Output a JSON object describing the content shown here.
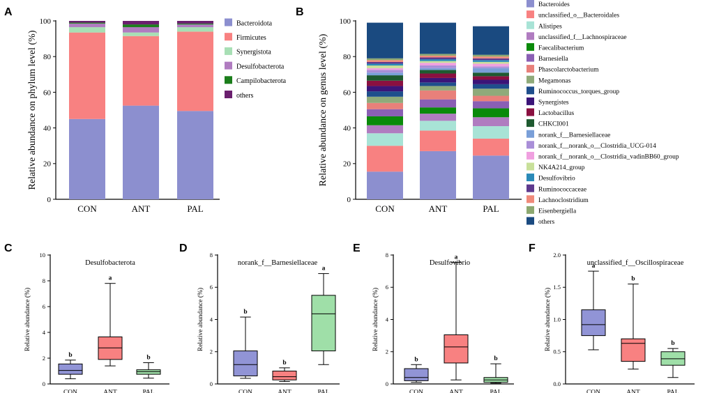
{
  "colors": {
    "Bacteroidota": "#8c8fcf",
    "Firmicutes": "#f88181",
    "Synergistota": "#a8dfb5",
    "Desulfobacterota": "#b07cc0",
    "Campilobacterota": "#1b7e1b",
    "others_phylum": "#6a1f6e",
    "box_CON": "#9194d6",
    "box_ANT": "#f88181",
    "box_PAL": "#9fdfa8"
  },
  "panel_letters": [
    "A",
    "B",
    "C",
    "D",
    "E",
    "F"
  ],
  "chart_data": [
    {
      "id": "A",
      "type": "bar",
      "stacked": true,
      "title": "",
      "ylabel": "Relative abundance on phylum level (%)",
      "xlabel": "",
      "ylim": [
        0,
        100
      ],
      "yticks": [
        0,
        20,
        40,
        60,
        80,
        100
      ],
      "categories": [
        "CON",
        "ANT",
        "PAL"
      ],
      "series": [
        {
          "name": "Bacteroidota",
          "color": "#8c8fcf",
          "values": [
            45,
            52.5,
            49.5
          ]
        },
        {
          "name": "Firmicutes",
          "color": "#f88181",
          "values": [
            48.5,
            39,
            44.5
          ]
        },
        {
          "name": "Synergistota",
          "color": "#a8dfb5",
          "values": [
            3,
            2,
            2.5
          ]
        },
        {
          "name": "Desulfobacterota",
          "color": "#b07cc0",
          "values": [
            2,
            3,
            1.5
          ]
        },
        {
          "name": "Campilobacterota",
          "color": "#1b7e1b",
          "values": [
            0.5,
            1.5,
            0.5
          ]
        },
        {
          "name": "others",
          "color": "#6a1f6e",
          "values": [
            1,
            2,
            1.5
          ]
        }
      ],
      "legend_position": "right"
    },
    {
      "id": "B",
      "type": "bar",
      "stacked": true,
      "title": "",
      "ylabel": "Relative abundance on genus level (%)",
      "xlabel": "",
      "ylim": [
        0,
        100
      ],
      "yticks": [
        0,
        20,
        40,
        60,
        80,
        100
      ],
      "categories": [
        "CON",
        "ANT",
        "PAL"
      ],
      "series": [
        {
          "name": "Bacteroides",
          "color": "#8c8fcf",
          "values": [
            15.5,
            27,
            24.5
          ]
        },
        {
          "name": "unclassified_o__Bacteroidales",
          "color": "#f88181",
          "values": [
            14.5,
            11.5,
            9.5
          ]
        },
        {
          "name": "Alistipes",
          "color": "#a8e3d6",
          "values": [
            7,
            5.5,
            7
          ]
        },
        {
          "name": "unclassified_f__Lachnospiraceae",
          "color": "#b07cc0",
          "values": [
            4.5,
            4,
            5
          ]
        },
        {
          "name": "Faecalibacterium",
          "color": "#0a8a0a",
          "values": [
            5,
            3.5,
            5
          ]
        },
        {
          "name": "Barnesiella",
          "color": "#8a5fb4",
          "values": [
            4,
            4.5,
            4
          ]
        },
        {
          "name": "Phascolarctobacterium",
          "color": "#e8807a",
          "values": [
            3.5,
            5,
            3
          ]
        },
        {
          "name": "Megamonas",
          "color": "#8faa7a",
          "values": [
            3.5,
            2.5,
            4
          ]
        },
        {
          "name": "Ruminococcus_torques_group",
          "color": "#1f4e8c",
          "values": [
            3,
            2,
            2.5
          ]
        },
        {
          "name": "Synergistes",
          "color": "#3b1478",
          "values": [
            3,
            2.5,
            2.5
          ]
        },
        {
          "name": "Lactobacillus",
          "color": "#8a1040",
          "values": [
            3,
            2.5,
            2
          ]
        },
        {
          "name": "CHKCI001",
          "color": "#1e5a30",
          "values": [
            3,
            2,
            2
          ]
        },
        {
          "name": "norank_f__Barnesiellaceae",
          "color": "#7a9fd8",
          "values": [
            1.5,
            1,
            2.5
          ]
        },
        {
          "name": "norank_f__norank_o__Clostridia_UCG-014",
          "color": "#a98fd8",
          "values": [
            1.5,
            1.5,
            1
          ]
        },
        {
          "name": "norank_f__norank_o__Clostridia_vadinBB60_group",
          "color": "#f0a0e0",
          "values": [
            1,
            1.5,
            1.5
          ]
        },
        {
          "name": "NK4A214_group",
          "color": "#c8e09a",
          "values": [
            1.5,
            1,
            1
          ]
        },
        {
          "name": "Desulfovibrio",
          "color": "#2a8ab8",
          "values": [
            1,
            1,
            1
          ]
        },
        {
          "name": "Ruminococcaceae",
          "color": "#5e3a8e",
          "values": [
            1,
            1,
            1
          ]
        },
        {
          "name": "Lachnoclostridium",
          "color": "#f08a7a",
          "values": [
            1,
            1,
            1
          ]
        },
        {
          "name": "Eisenbergiella",
          "color": "#8da870",
          "values": [
            1,
            1,
            1
          ]
        },
        {
          "name": "others",
          "color": "#1a4a80",
          "values": [
            20,
            17.5,
            16
          ]
        }
      ],
      "legend_position": "right"
    },
    {
      "id": "C",
      "type": "box",
      "title": "Desulfobacterota",
      "ylabel": "Relative abundance (%)",
      "xlabel": "",
      "ylim": [
        0,
        10
      ],
      "yticks": [
        0,
        2,
        4,
        6,
        8,
        10
      ],
      "categories": [
        "CON",
        "ANT",
        "PAL"
      ],
      "boxes": [
        {
          "min": 0.4,
          "q1": 0.75,
          "median": 1.05,
          "q3": 1.55,
          "max": 1.85,
          "letter": "b"
        },
        {
          "min": 1.4,
          "q1": 1.9,
          "median": 2.8,
          "q3": 3.65,
          "max": 7.8,
          "letter": "a"
        },
        {
          "min": 0.45,
          "q1": 0.75,
          "median": 0.95,
          "q3": 1.1,
          "max": 1.65,
          "letter": "b"
        }
      ]
    },
    {
      "id": "D",
      "type": "box",
      "title": "norank_f__Barnesiellaceae",
      "ylabel": "Relative abundance (%)",
      "xlabel": "",
      "ylim": [
        0,
        8
      ],
      "yticks": [
        0,
        2,
        4,
        6,
        8
      ],
      "categories": [
        "CON",
        "ANT",
        "PAL"
      ],
      "boxes": [
        {
          "min": 0.35,
          "q1": 0.5,
          "median": 1.2,
          "q3": 2.05,
          "max": 4.15,
          "letter": "b"
        },
        {
          "min": 0.15,
          "q1": 0.25,
          "median": 0.45,
          "q3": 0.8,
          "max": 1.0,
          "letter": "b"
        },
        {
          "min": 1.2,
          "q1": 2.05,
          "median": 4.35,
          "q3": 5.5,
          "max": 6.85,
          "letter": "a"
        }
      ]
    },
    {
      "id": "E",
      "type": "box",
      "title": "Desulfovibrio",
      "ylabel": "Relative abundance (%)",
      "xlabel": "",
      "ylim": [
        0,
        8
      ],
      "yticks": [
        0,
        2,
        4,
        6,
        8
      ],
      "categories": [
        "CON",
        "ANT",
        "PAL"
      ],
      "boxes": [
        {
          "min": 0.1,
          "q1": 0.2,
          "median": 0.4,
          "q3": 0.95,
          "max": 1.2,
          "letter": "b"
        },
        {
          "min": 0.25,
          "q1": 1.3,
          "median": 2.3,
          "q3": 3.05,
          "max": 7.55,
          "letter": "a"
        },
        {
          "min": 0.05,
          "q1": 0.1,
          "median": 0.25,
          "q3": 0.4,
          "max": 1.25,
          "letter": "b"
        }
      ]
    },
    {
      "id": "F",
      "type": "box",
      "title": "unclassified_f__Oscillospiraceae",
      "ylabel": "Relative abundance (%)",
      "xlabel": "",
      "ylim": [
        0,
        2.0
      ],
      "yticks": [
        0.0,
        0.5,
        1.0,
        1.5,
        2.0
      ],
      "ytick_decimals": 1,
      "categories": [
        "CON",
        "ANT",
        "PAL"
      ],
      "boxes": [
        {
          "min": 0.53,
          "q1": 0.75,
          "median": 0.92,
          "q3": 1.15,
          "max": 1.75,
          "letter": "a"
        },
        {
          "min": 0.23,
          "q1": 0.35,
          "median": 0.63,
          "q3": 0.7,
          "max": 1.55,
          "letter": "b"
        },
        {
          "min": 0.1,
          "q1": 0.29,
          "median": 0.39,
          "q3": 0.5,
          "max": 0.55,
          "letter": "b"
        }
      ]
    }
  ]
}
